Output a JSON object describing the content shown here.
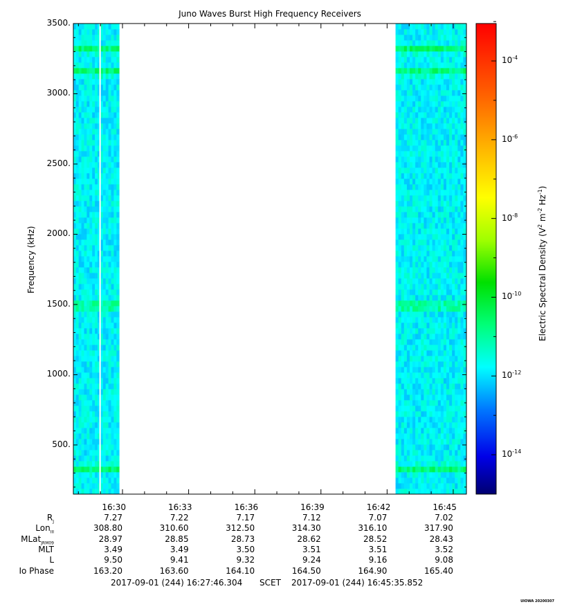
{
  "chart_data": {
    "type": "heatmap",
    "title": "Juno Waves Burst High Frequency Receivers",
    "ylabel": "Frequency (kHz)",
    "ylim": [
      150,
      3500
    ],
    "y_ticks": [
      "500.",
      "1000.",
      "1500.",
      "2000.",
      "2500.",
      "3000.",
      "3500."
    ],
    "y_tick_values": [
      500,
      1000,
      1500,
      2000,
      2500,
      3000,
      3500
    ],
    "x_start": "16:27:46.304",
    "x_end": "16:45:35.852",
    "x_ticks": [
      "16:30",
      "16:33",
      "16:36",
      "16:39",
      "16:42",
      "16:45"
    ],
    "data_intervals": [
      {
        "start": "16:27:46",
        "end": "16:29:51",
        "gap_at": "16:28:59"
      },
      {
        "start": "16:42:23",
        "end": "16:45:35"
      }
    ],
    "spectral_bands_khz": [
      330,
      1490,
      3160,
      3320
    ],
    "colorbar": {
      "label": "Electric Spectral Density",
      "unit_base": "V",
      "tick_exponents": [
        "-4",
        "-6",
        "-8",
        "-10",
        "-12",
        "-14"
      ],
      "range_log10": [
        -15,
        -3.05
      ],
      "background_log10": -11.8,
      "band_log10": -10.9
    },
    "ephemeris": {
      "row_labels": [
        "R",
        "Lon",
        "MLat",
        "MLT",
        "L",
        "Io Phase"
      ],
      "row_subscripts": [
        "J",
        "III",
        "JRM09",
        "",
        "",
        ""
      ],
      "rows": [
        [
          "7.27",
          "7.22",
          "7.17",
          "7.12",
          "7.07",
          "7.02"
        ],
        [
          "308.80",
          "310.60",
          "312.50",
          "314.30",
          "316.10",
          "317.90"
        ],
        [
          "28.97",
          "28.85",
          "28.73",
          "28.62",
          "28.52",
          "28.43"
        ],
        [
          "3.49",
          "3.49",
          "3.50",
          "3.51",
          "3.51",
          "3.52"
        ],
        [
          "9.50",
          "9.41",
          "9.32",
          "9.24",
          "9.16",
          "9.08"
        ],
        [
          "163.20",
          "163.60",
          "164.10",
          "164.50",
          "164.90",
          "165.40"
        ]
      ]
    },
    "footer": {
      "start": "2017-09-01 (244) 16:27:46.304",
      "scet": "SCET",
      "end": "2017-09-01 (244) 16:45:35.852"
    },
    "stamp": "UIOWA 20200307"
  }
}
